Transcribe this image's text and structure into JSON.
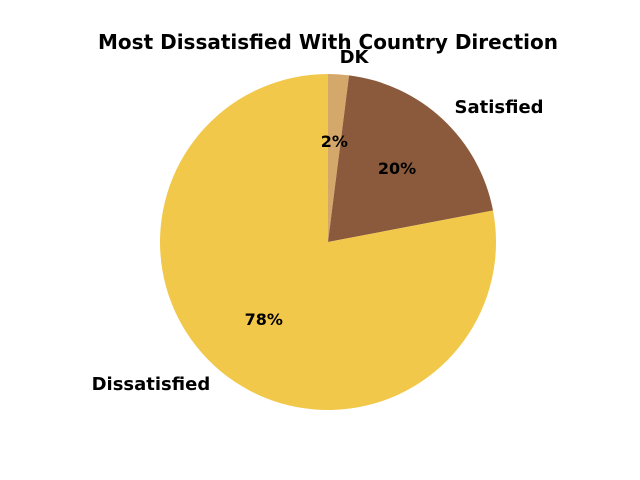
{
  "chart_data": {
    "type": "pie",
    "title": "Most Dissatisfied With Country Direction",
    "slices": [
      {
        "label": "DK",
        "value": 2,
        "pct_label": "2%",
        "color": "#d4a76a"
      },
      {
        "label": "Satisfied",
        "value": 20,
        "pct_label": "20%",
        "color": "#8b5a3c"
      },
      {
        "label": "Dissatisfied",
        "value": 78,
        "pct_label": "78%",
        "color": "#f2c84b"
      }
    ],
    "start_angle": 90,
    "direction": "clockwise",
    "legend": "none"
  }
}
